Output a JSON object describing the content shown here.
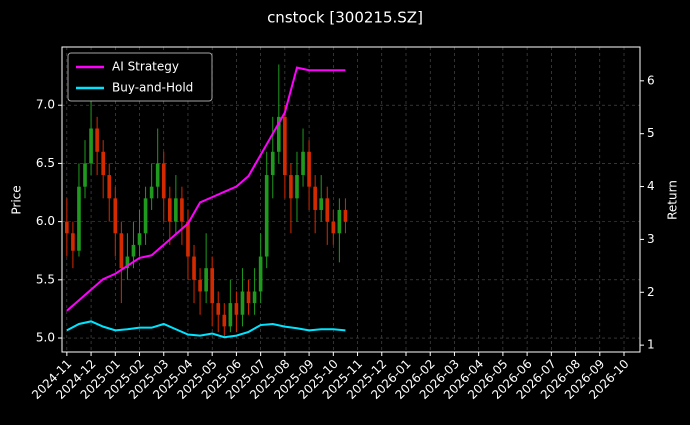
{
  "chart_data": {
    "type": "candlestick",
    "title": "cnstock [300215.SZ]",
    "ylabel": "Price",
    "y2label": "Return",
    "up_color": "#1f9a1f",
    "down_color": "#d42a00",
    "grid": true,
    "legend_loc": "upper left",
    "x": [
      0,
      0.25,
      0.5,
      0.75,
      1,
      1.25,
      1.5,
      1.75,
      2,
      2.25,
      2.5,
      2.75,
      3,
      3.25,
      3.5,
      3.75,
      4,
      4.25,
      4.5,
      4.75,
      5,
      5.25,
      5.5,
      5.75,
      6,
      6.25,
      6.5,
      6.75,
      7,
      7.25,
      7.5,
      7.75,
      8,
      8.25,
      8.5,
      8.75,
      9,
      9.25,
      9.5,
      9.75,
      10,
      10.25,
      10.5,
      10.75,
      11,
      11.25,
      11.5
    ],
    "open": [
      6.0,
      5.9,
      5.75,
      6.3,
      6.5,
      6.8,
      6.6,
      6.4,
      6.2,
      5.9,
      5.6,
      5.7,
      5.8,
      5.9,
      6.2,
      6.3,
      6.5,
      6.2,
      6.0,
      6.2,
      6.0,
      5.7,
      5.5,
      5.4,
      5.6,
      5.3,
      5.2,
      5.1,
      5.3,
      5.2,
      5.4,
      5.3,
      5.4,
      5.7,
      6.4,
      6.6,
      6.9,
      6.4,
      6.2,
      6.4,
      6.6,
      6.3,
      6.1,
      6.2,
      6.0,
      5.9,
      6.1
    ],
    "high": [
      6.2,
      6.0,
      6.5,
      6.7,
      7.1,
      6.9,
      6.7,
      6.5,
      6.3,
      6.0,
      5.9,
      6.0,
      6.1,
      6.3,
      6.5,
      6.8,
      6.6,
      6.3,
      6.4,
      6.3,
      6.1,
      5.8,
      5.6,
      5.9,
      5.7,
      5.4,
      5.3,
      5.5,
      5.4,
      5.6,
      5.5,
      5.6,
      5.9,
      6.6,
      6.9,
      7.35,
      7.0,
      6.5,
      6.6,
      6.8,
      6.7,
      6.4,
      6.4,
      6.3,
      6.1,
      6.2,
      6.2
    ],
    "low": [
      5.7,
      5.6,
      5.7,
      6.2,
      6.4,
      6.4,
      6.2,
      6.0,
      5.7,
      5.3,
      5.5,
      5.6,
      5.7,
      5.8,
      6.1,
      6.2,
      6.0,
      5.8,
      5.9,
      5.8,
      5.5,
      5.3,
      5.2,
      5.3,
      5.1,
      5.05,
      5.0,
      5.05,
      5.05,
      5.1,
      5.2,
      5.2,
      5.3,
      5.6,
      6.2,
      6.5,
      6.2,
      5.9,
      6.0,
      6.3,
      6.1,
      5.9,
      6.0,
      5.8,
      5.8,
      5.65,
      5.9
    ],
    "close": [
      5.9,
      5.75,
      6.3,
      6.5,
      6.8,
      6.6,
      6.4,
      6.2,
      5.9,
      5.6,
      5.7,
      5.8,
      5.9,
      6.2,
      6.3,
      6.5,
      6.2,
      6.0,
      6.2,
      6.0,
      5.7,
      5.5,
      5.4,
      5.6,
      5.3,
      5.2,
      5.1,
      5.3,
      5.2,
      5.4,
      5.3,
      5.4,
      5.7,
      6.4,
      6.6,
      6.9,
      6.4,
      6.2,
      6.4,
      6.6,
      6.3,
      6.1,
      6.2,
      6.0,
      5.9,
      6.1,
      6.0
    ],
    "series": [
      {
        "name": "AI Strategy",
        "color": "#ff00ff",
        "axis": "y2",
        "x": [
          0,
          0.5,
          1,
          1.5,
          2,
          2.5,
          3,
          3.5,
          4,
          4.5,
          5,
          5.5,
          6,
          6.5,
          7,
          7.5,
          8,
          8.5,
          9,
          9.5,
          10,
          10.5,
          11,
          11.5
        ],
        "values": [
          1.65,
          1.85,
          2.05,
          2.25,
          2.35,
          2.5,
          2.65,
          2.7,
          2.9,
          3.1,
          3.3,
          3.7,
          3.8,
          3.9,
          4.0,
          4.2,
          4.6,
          5.0,
          5.4,
          6.25,
          6.2,
          6.2,
          6.2,
          6.2
        ]
      },
      {
        "name": "Buy-and-Hold",
        "color": "#00e5ff",
        "axis": "y2",
        "x": [
          0,
          0.5,
          1,
          1.5,
          2,
          2.5,
          3,
          3.5,
          4,
          4.5,
          5,
          5.5,
          6,
          6.5,
          7,
          7.5,
          8,
          8.5,
          9,
          9.5,
          10,
          10.5,
          11,
          11.5
        ],
        "values": [
          1.28,
          1.4,
          1.45,
          1.35,
          1.28,
          1.3,
          1.33,
          1.33,
          1.4,
          1.3,
          1.2,
          1.18,
          1.22,
          1.15,
          1.18,
          1.25,
          1.38,
          1.4,
          1.35,
          1.32,
          1.28,
          1.3,
          1.3,
          1.28
        ]
      }
    ],
    "xlim": [
      -0.2,
      23.66
    ],
    "xticks": [
      {
        "value": 0,
        "label": "2024-11"
      },
      {
        "value": 1,
        "label": "2024-12"
      },
      {
        "value": 2,
        "label": "2025-01"
      },
      {
        "value": 3,
        "label": "2025-02"
      },
      {
        "value": 4,
        "label": "2025-03"
      },
      {
        "value": 5,
        "label": "2025-04"
      },
      {
        "value": 6,
        "label": "2025-05"
      },
      {
        "value": 7,
        "label": "2025-06"
      },
      {
        "value": 8,
        "label": "2025-07"
      },
      {
        "value": 9,
        "label": "2025-08"
      },
      {
        "value": 10,
        "label": "2025-09"
      },
      {
        "value": 11,
        "label": "2025-10"
      },
      {
        "value": 12,
        "label": "2025-11"
      },
      {
        "value": 13,
        "label": "2025-12"
      },
      {
        "value": 14,
        "label": "2026-01"
      },
      {
        "value": 15,
        "label": "2026-02"
      },
      {
        "value": 16,
        "label": "2026-03"
      },
      {
        "value": 17,
        "label": "2026-04"
      },
      {
        "value": 18,
        "label": "2026-05"
      },
      {
        "value": 19,
        "label": "2026-06"
      },
      {
        "value": 20,
        "label": "2026-07"
      },
      {
        "value": 21,
        "label": "2026-08"
      },
      {
        "value": 22,
        "label": "2026-09"
      },
      {
        "value": 23,
        "label": "2026-10"
      }
    ],
    "ylim": [
      4.88,
      7.5
    ],
    "yticks": [
      {
        "value": 5,
        "label": "5.0"
      },
      5.5,
      {
        "value": 6,
        "label": "6.0"
      },
      6.5,
      {
        "value": 7,
        "label": "7.0"
      }
    ],
    "y2lim": [
      0.87,
      6.64
    ],
    "y2ticks": [
      1,
      2,
      3,
      4,
      5,
      6
    ]
  }
}
